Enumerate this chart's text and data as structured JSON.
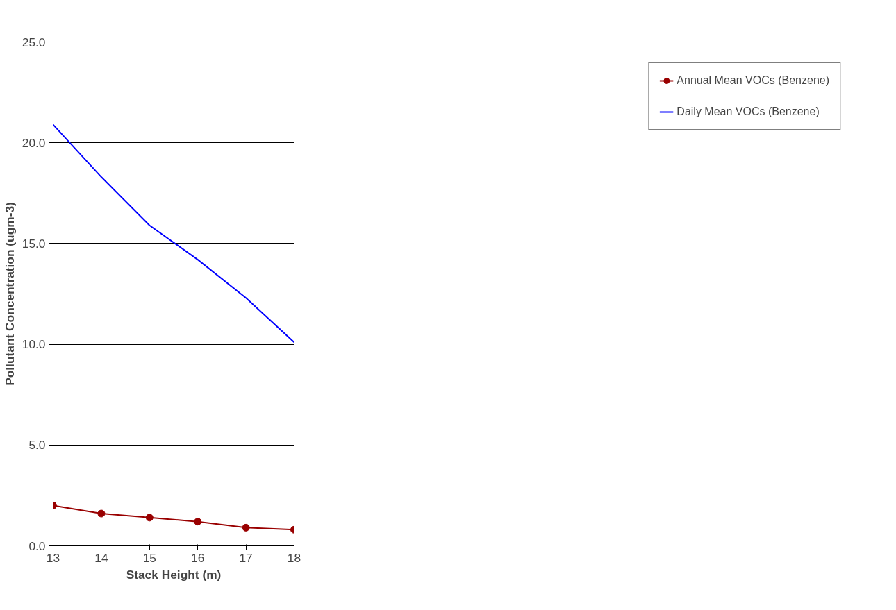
{
  "chart_data": {
    "type": "line",
    "xlabel": "Stack Height (m)",
    "ylabel": "Pollutant Concentration (ugm-3)",
    "x": [
      13,
      14,
      15,
      16,
      17,
      18
    ],
    "series": [
      {
        "name": "Annual Mean VOCs (Benzene)",
        "color": "#990000",
        "marker": "circle",
        "values": [
          2.0,
          1.6,
          1.4,
          1.2,
          0.9,
          0.8
        ]
      },
      {
        "name": "Daily Mean VOCs (Benzene)",
        "color": "#0000ff",
        "marker": "none",
        "values": [
          20.9,
          18.3,
          15.9,
          14.2,
          12.3,
          10.1
        ]
      }
    ],
    "xlim": [
      13,
      18
    ],
    "xticks": [
      13,
      14,
      15,
      16,
      17,
      18
    ],
    "ylim": [
      0,
      25
    ],
    "yticks": [
      {
        "value": 0,
        "label": "0.0"
      },
      {
        "value": 5,
        "label": "5.0"
      },
      {
        "value": 10,
        "label": "10.0"
      },
      {
        "value": 15,
        "label": "15.0"
      },
      {
        "value": 20,
        "label": "20.0"
      },
      {
        "value": 25,
        "label": "25.0"
      }
    ],
    "grid": "y",
    "legend": "right",
    "line_style": "solid"
  }
}
